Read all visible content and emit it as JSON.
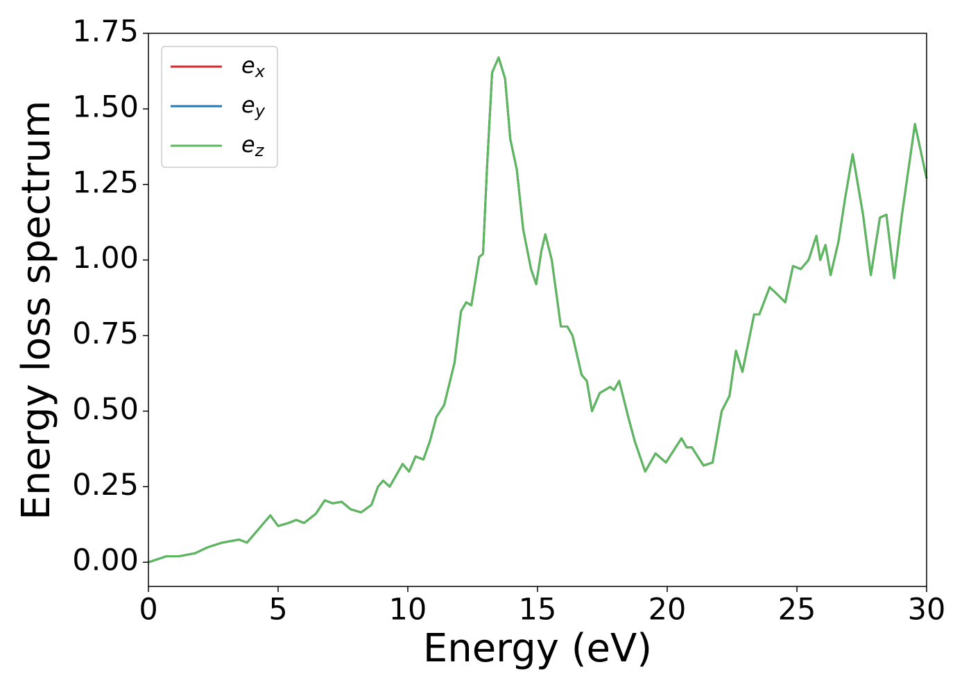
{
  "chart_data": {
    "type": "line",
    "xlabel": "Energy (eV)",
    "ylabel": "Energy loss spectrum",
    "xlim": [
      0,
      30
    ],
    "ylim": [
      -0.08,
      1.75
    ],
    "xticks": [
      0,
      5,
      10,
      15,
      20,
      25,
      30
    ],
    "yticks": [
      {
        "value": 0,
        "label": "0.00"
      },
      {
        "value": 0.25,
        "label": "0.25"
      },
      {
        "value": 0.5,
        "label": "0.50"
      },
      {
        "value": 0.75,
        "label": "0.75"
      },
      {
        "value": 1,
        "label": "1.00"
      },
      {
        "value": 1.25,
        "label": "1.25"
      },
      {
        "value": 1.5,
        "label": "1.50"
      },
      {
        "value": 1.75,
        "label": "1.75"
      }
    ],
    "legend": "upper left",
    "x": [
      0,
      0.7,
      1.2,
      1.8,
      2.3,
      2.85,
      3.5,
      3.8,
      4.3,
      4.7,
      5.0,
      5.4,
      5.7,
      6.0,
      6.45,
      6.8,
      7.1,
      7.45,
      7.8,
      8.2,
      8.6,
      8.85,
      9.05,
      9.3,
      9.8,
      10.05,
      10.3,
      10.6,
      10.85,
      11.1,
      11.4,
      11.8,
      12.05,
      12.25,
      12.45,
      12.75,
      12.9,
      13.05,
      13.25,
      13.5,
      13.75,
      13.95,
      14.2,
      14.45,
      14.75,
      14.95,
      15.15,
      15.3,
      15.55,
      15.9,
      16.15,
      16.35,
      16.7,
      16.9,
      17.1,
      17.4,
      17.8,
      17.95,
      18.15,
      18.5,
      18.75,
      19.15,
      19.55,
      19.95,
      20.55,
      20.75,
      20.95,
      21.4,
      21.75,
      22.1,
      22.4,
      22.65,
      22.9,
      23.35,
      23.55,
      23.95,
      24.2,
      24.55,
      24.85,
      25.15,
      25.45,
      25.75,
      25.9,
      26.1,
      26.3,
      26.6,
      26.85,
      27.15,
      27.55,
      27.85,
      28.2,
      28.45,
      28.75,
      29.05,
      29.55,
      30
    ],
    "series": [
      {
        "name": "ex",
        "color": "#d62728",
        "values": [
          0,
          0.02,
          0.02,
          0.03,
          0.05,
          0.065,
          0.075,
          0.065,
          0.115,
          0.155,
          0.12,
          0.13,
          0.14,
          0.13,
          0.16,
          0.205,
          0.195,
          0.2,
          0.175,
          0.165,
          0.19,
          0.25,
          0.27,
          0.25,
          0.325,
          0.3,
          0.35,
          0.34,
          0.4,
          0.48,
          0.52,
          0.66,
          0.83,
          0.86,
          0.85,
          1.01,
          1.02,
          1.3,
          1.62,
          1.67,
          1.6,
          1.4,
          1.3,
          1.1,
          0.97,
          0.92,
          1.03,
          1.085,
          1.0,
          0.78,
          0.78,
          0.75,
          0.62,
          0.6,
          0.5,
          0.56,
          0.58,
          0.57,
          0.6,
          0.48,
          0.4,
          0.3,
          0.36,
          0.33,
          0.41,
          0.38,
          0.38,
          0.32,
          0.33,
          0.5,
          0.55,
          0.7,
          0.63,
          0.82,
          0.82,
          0.91,
          0.89,
          0.86,
          0.98,
          0.97,
          1.0,
          1.08,
          1.0,
          1.05,
          0.95,
          1.06,
          1.2,
          1.35,
          1.15,
          0.95,
          1.14,
          1.15,
          0.94,
          1.15,
          1.45,
          1.27
        ]
      },
      {
        "name": "ey",
        "color": "#1f77b4",
        "values": [
          0,
          0.02,
          0.02,
          0.03,
          0.05,
          0.065,
          0.075,
          0.065,
          0.115,
          0.155,
          0.12,
          0.13,
          0.14,
          0.13,
          0.16,
          0.205,
          0.195,
          0.2,
          0.175,
          0.165,
          0.19,
          0.25,
          0.27,
          0.25,
          0.325,
          0.3,
          0.35,
          0.34,
          0.4,
          0.48,
          0.52,
          0.66,
          0.83,
          0.86,
          0.85,
          1.01,
          1.02,
          1.3,
          1.62,
          1.67,
          1.6,
          1.4,
          1.3,
          1.1,
          0.97,
          0.92,
          1.03,
          1.085,
          1.0,
          0.78,
          0.78,
          0.75,
          0.62,
          0.6,
          0.5,
          0.56,
          0.58,
          0.57,
          0.6,
          0.48,
          0.4,
          0.3,
          0.36,
          0.33,
          0.41,
          0.38,
          0.38,
          0.32,
          0.33,
          0.5,
          0.55,
          0.7,
          0.63,
          0.82,
          0.82,
          0.91,
          0.89,
          0.86,
          0.98,
          0.97,
          1.0,
          1.08,
          1.0,
          1.05,
          0.95,
          1.06,
          1.2,
          1.35,
          1.15,
          0.95,
          1.14,
          1.15,
          0.94,
          1.15,
          1.45,
          1.27
        ]
      },
      {
        "name": "ez",
        "color": "#5cb85c",
        "values": [
          0,
          0.02,
          0.02,
          0.03,
          0.05,
          0.065,
          0.075,
          0.065,
          0.115,
          0.155,
          0.12,
          0.13,
          0.14,
          0.13,
          0.16,
          0.205,
          0.195,
          0.2,
          0.175,
          0.165,
          0.19,
          0.25,
          0.27,
          0.25,
          0.325,
          0.3,
          0.35,
          0.34,
          0.4,
          0.48,
          0.52,
          0.66,
          0.83,
          0.86,
          0.85,
          1.01,
          1.02,
          1.3,
          1.62,
          1.67,
          1.6,
          1.4,
          1.3,
          1.1,
          0.97,
          0.92,
          1.03,
          1.085,
          1.0,
          0.78,
          0.78,
          0.75,
          0.62,
          0.6,
          0.5,
          0.56,
          0.58,
          0.57,
          0.6,
          0.48,
          0.4,
          0.3,
          0.36,
          0.33,
          0.41,
          0.38,
          0.38,
          0.32,
          0.33,
          0.5,
          0.55,
          0.7,
          0.63,
          0.82,
          0.82,
          0.91,
          0.89,
          0.86,
          0.98,
          0.97,
          1.0,
          1.08,
          1.0,
          1.05,
          0.95,
          1.06,
          1.2,
          1.35,
          1.15,
          0.95,
          1.14,
          1.15,
          0.94,
          1.15,
          1.45,
          1.27
        ]
      }
    ]
  }
}
